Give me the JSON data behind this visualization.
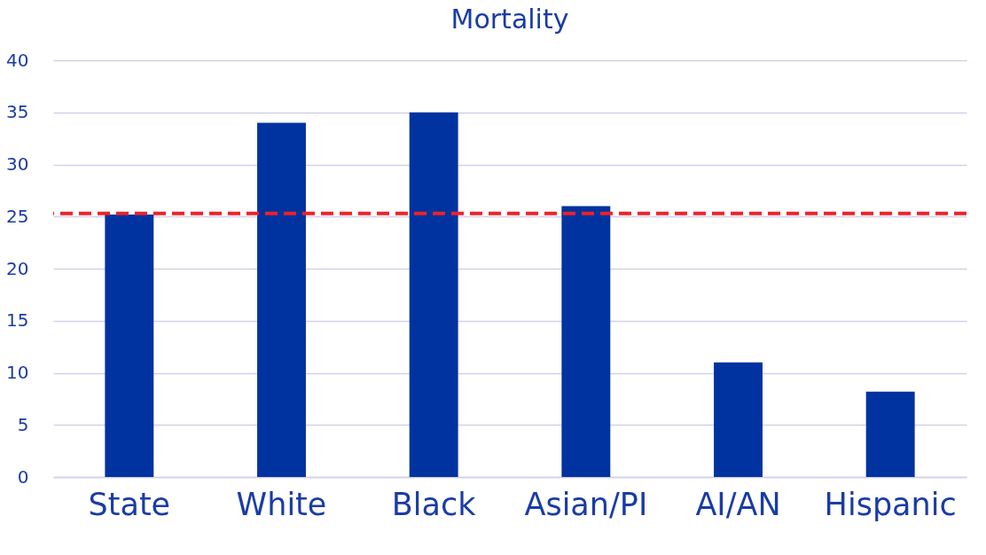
{
  "chart_data": {
    "type": "bar",
    "title": "Mortality",
    "categories": [
      "State",
      "White",
      "Black",
      "Asian/PI",
      "AI/AN",
      "Hispanic"
    ],
    "values": [
      25.2,
      34.0,
      35.0,
      26.0,
      11.0,
      8.2
    ],
    "color": "#0033a0",
    "ylim": [
      0,
      40
    ],
    "yticks": [
      0,
      5,
      10,
      15,
      20,
      25,
      30,
      35,
      40
    ],
    "grid": "y",
    "ref_lines": [
      {
        "axis": "y",
        "value": 25.3,
        "label": null,
        "color": "#ee2229",
        "line_style": "dashed"
      }
    ]
  }
}
